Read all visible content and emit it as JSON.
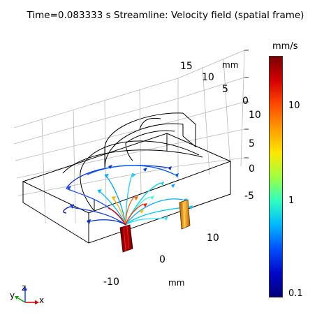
{
  "header": {
    "title": "Time=0.083333 s  Streamline: Velocity field (spatial frame)"
  },
  "axes": {
    "unit_top": "mm",
    "unit_bottom": "mm",
    "y_ticks": [
      "15",
      "10",
      "5",
      "0"
    ],
    "z_ticks": [
      "10",
      "5",
      "0",
      "-5"
    ],
    "x_ticks": [
      "10",
      "0",
      "-10"
    ]
  },
  "colorbar": {
    "unit": "mm/s",
    "ticks": [
      "10",
      "1",
      "0.1"
    ],
    "colors": [
      "#7a0000",
      "#d40000",
      "#ff4a00",
      "#ff9b00",
      "#ffe600",
      "#a0ff40",
      "#30ffc0",
      "#00b8ff",
      "#0050ff",
      "#0008c8",
      "#00007a"
    ]
  },
  "triad": {
    "x": "x",
    "y": "y",
    "z": "z"
  }
}
